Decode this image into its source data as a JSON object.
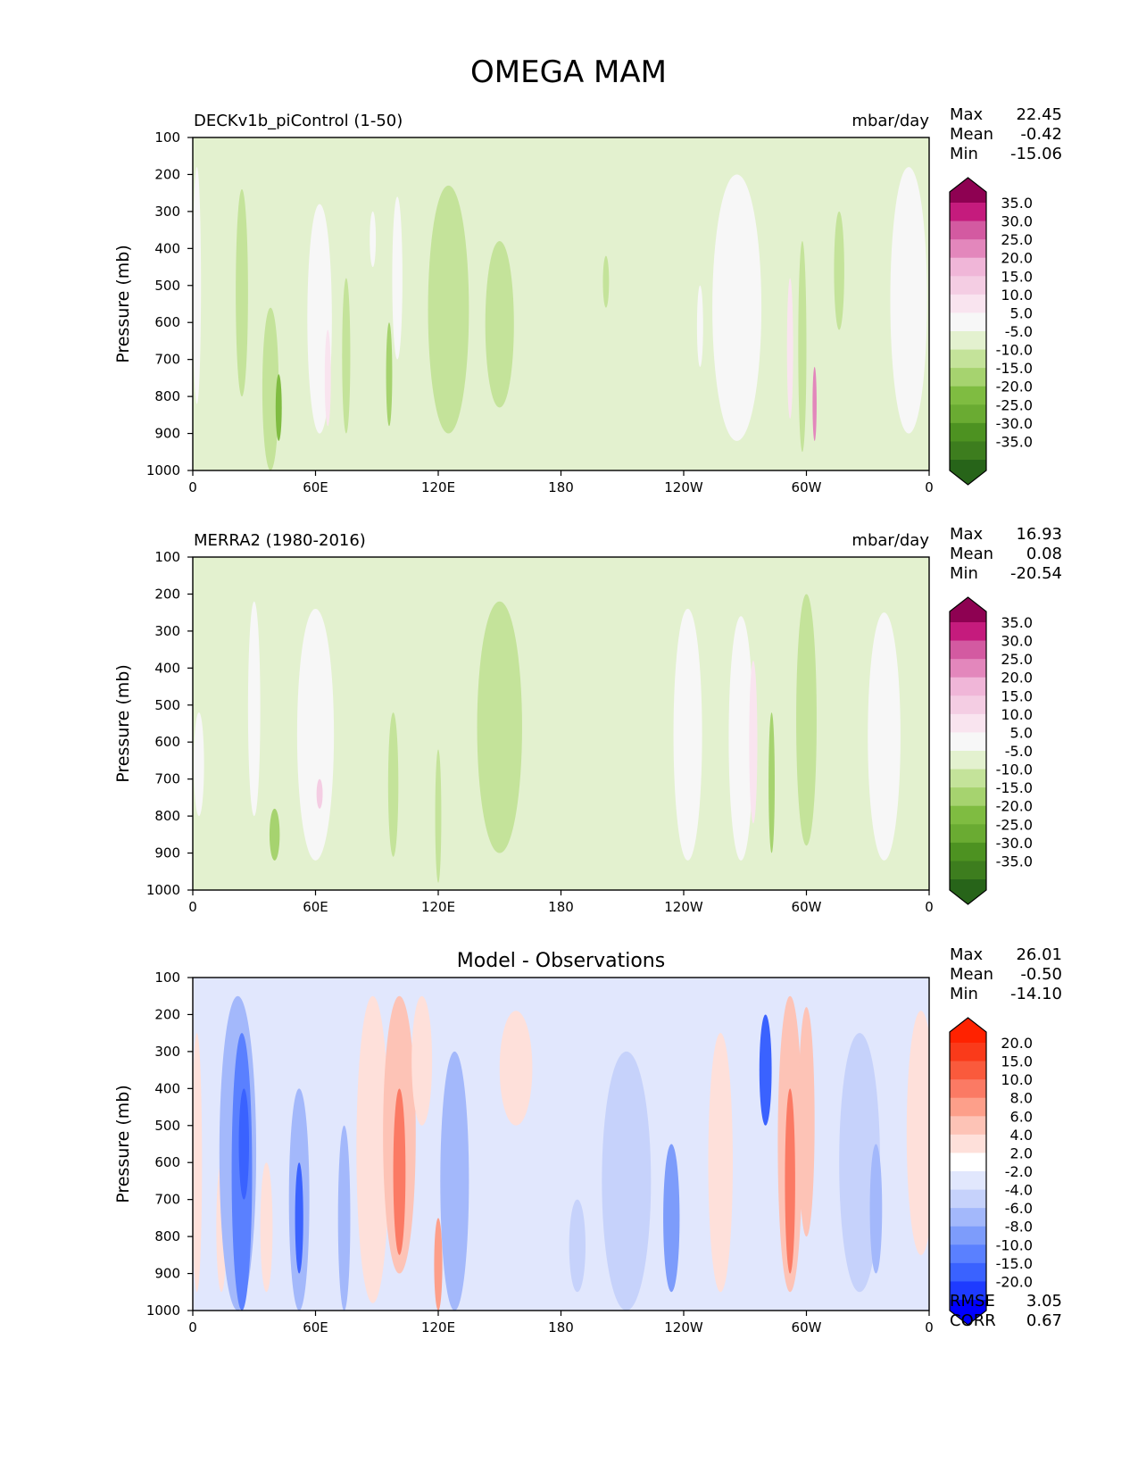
{
  "title": "OMEGA MAM",
  "x_ticks": [
    "0",
    "60E",
    "120E",
    "180",
    "120W",
    "60W",
    "0"
  ],
  "y_ticks": [
    "100",
    "200",
    "300",
    "400",
    "500",
    "600",
    "700",
    "800",
    "900",
    "1000"
  ],
  "y_label": "Pressure (mb)",
  "panels": [
    {
      "title_left": "DECKv1b_piControl (1-50)",
      "title_center": "",
      "units": "mbar/day",
      "stats": [
        {
          "label": "Max",
          "value": "22.45"
        },
        {
          "label": "Mean",
          "value": "-0.42"
        },
        {
          "label": "Min",
          "value": "-15.06"
        }
      ],
      "colorbar_labels": [
        "35.0",
        "30.0",
        "25.0",
        "20.0",
        "15.0",
        "10.0",
        "5.0",
        "-5.0",
        "-10.0",
        "-15.0",
        "-20.0",
        "-25.0",
        "-30.0",
        "-35.0"
      ],
      "extra_stats": []
    },
    {
      "title_left": "MERRA2 (1980-2016)",
      "title_center": "",
      "units": "mbar/day",
      "stats": [
        {
          "label": "Max",
          "value": "16.93"
        },
        {
          "label": "Mean",
          "value": "0.08"
        },
        {
          "label": "Min",
          "value": "-20.54"
        }
      ],
      "colorbar_labels": [
        "35.0",
        "30.0",
        "25.0",
        "20.0",
        "15.0",
        "10.0",
        "5.0",
        "-5.0",
        "-10.0",
        "-15.0",
        "-20.0",
        "-25.0",
        "-30.0",
        "-35.0"
      ],
      "extra_stats": []
    },
    {
      "title_left": "",
      "title_center": "Model - Observations",
      "units": "",
      "stats": [
        {
          "label": "Max",
          "value": "26.01"
        },
        {
          "label": "Mean",
          "value": "-0.50"
        },
        {
          "label": "Min",
          "value": "-14.10"
        }
      ],
      "colorbar_labels": [
        "20.0",
        "15.0",
        "10.0",
        "8.0",
        "6.0",
        "4.0",
        "2.0",
        "-2.0",
        "-4.0",
        "-6.0",
        "-8.0",
        "-10.0",
        "-15.0",
        "-20.0"
      ],
      "extra_stats": [
        {
          "label": "RMSE",
          "value": "3.05"
        },
        {
          "label": "CORR",
          "value": "0.67"
        }
      ]
    }
  ],
  "chart_data": [
    {
      "type": "heatmap",
      "title": "DECKv1b_piControl (1-50)",
      "units": "mbar/day",
      "xlabel": "",
      "ylabel": "Pressure (mb)",
      "x_range": [
        0,
        360
      ],
      "ylim": [
        1000,
        100
      ],
      "levels": [
        -35,
        -30,
        -25,
        -20,
        -15,
        -10,
        -5,
        5,
        10,
        15,
        20,
        25,
        30,
        35
      ],
      "colormap": "PiYG_r",
      "colors": [
        "#276419",
        "#3d7d1e",
        "#4d9221",
        "#6aab32",
        "#7fbc41",
        "#a6d36f",
        "#c4e39a",
        "#e3f1cf",
        "#f7f7f7",
        "#f9e4ef",
        "#f4cde3",
        "#f0b6d8",
        "#e387bc",
        "#d35aa1",
        "#c51b7d",
        "#8e0152"
      ],
      "features": [
        {
          "lon": 2,
          "p_top": 180,
          "p_bot": 820,
          "width": 4,
          "value": 7
        },
        {
          "lon": 24,
          "p_top": 240,
          "p_bot": 800,
          "width": 6,
          "value": -6
        },
        {
          "lon": 38,
          "p_top": 560,
          "p_bot": 1000,
          "width": 8,
          "value": -10
        },
        {
          "lon": 42,
          "p_top": 740,
          "p_bot": 920,
          "width": 3,
          "value": -18
        },
        {
          "lon": 62,
          "p_top": 280,
          "p_bot": 900,
          "width": 12,
          "value": 7
        },
        {
          "lon": 66,
          "p_top": 620,
          "p_bot": 880,
          "width": 3,
          "value": 12
        },
        {
          "lon": 75,
          "p_top": 480,
          "p_bot": 900,
          "width": 4,
          "value": -8
        },
        {
          "lon": 88,
          "p_top": 300,
          "p_bot": 450,
          "width": 3,
          "value": 6
        },
        {
          "lon": 96,
          "p_top": 600,
          "p_bot": 880,
          "width": 3,
          "value": -15
        },
        {
          "lon": 100,
          "p_top": 260,
          "p_bot": 700,
          "width": 5,
          "value": 6
        },
        {
          "lon": 125,
          "p_top": 230,
          "p_bot": 900,
          "width": 20,
          "value": -6
        },
        {
          "lon": 150,
          "p_top": 380,
          "p_bot": 830,
          "width": 14,
          "value": -6
        },
        {
          "lon": 202,
          "p_top": 420,
          "p_bot": 560,
          "width": 3,
          "value": -6
        },
        {
          "lon": 248,
          "p_top": 500,
          "p_bot": 720,
          "width": 3,
          "value": 6
        },
        {
          "lon": 266,
          "p_top": 200,
          "p_bot": 920,
          "width": 24,
          "value": 7
        },
        {
          "lon": 292,
          "p_top": 480,
          "p_bot": 860,
          "width": 3,
          "value": 14
        },
        {
          "lon": 298,
          "p_top": 380,
          "p_bot": 950,
          "width": 4,
          "value": -8
        },
        {
          "lon": 304,
          "p_top": 720,
          "p_bot": 920,
          "width": 2,
          "value": 26
        },
        {
          "lon": 316,
          "p_top": 300,
          "p_bot": 620,
          "width": 5,
          "value": -6
        },
        {
          "lon": 350,
          "p_top": 180,
          "p_bot": 900,
          "width": 18,
          "value": 6
        }
      ]
    },
    {
      "type": "heatmap",
      "title": "MERRA2 (1980-2016)",
      "units": "mbar/day",
      "xlabel": "",
      "ylabel": "Pressure (mb)",
      "x_range": [
        0,
        360
      ],
      "ylim": [
        1000,
        100
      ],
      "levels": [
        -35,
        -30,
        -25,
        -20,
        -15,
        -10,
        -5,
        5,
        10,
        15,
        20,
        25,
        30,
        35
      ],
      "colormap": "PiYG_r",
      "colors": [
        "#276419",
        "#3d7d1e",
        "#4d9221",
        "#6aab32",
        "#7fbc41",
        "#a6d36f",
        "#c4e39a",
        "#e3f1cf",
        "#f7f7f7",
        "#f9e4ef",
        "#f4cde3",
        "#f0b6d8",
        "#e387bc",
        "#d35aa1",
        "#c51b7d",
        "#8e0152"
      ],
      "features": [
        {
          "lon": 3,
          "p_top": 520,
          "p_bot": 800,
          "width": 5,
          "value": 6
        },
        {
          "lon": 30,
          "p_top": 220,
          "p_bot": 800,
          "width": 6,
          "value": 6
        },
        {
          "lon": 40,
          "p_top": 780,
          "p_bot": 920,
          "width": 5,
          "value": -14
        },
        {
          "lon": 60,
          "p_top": 240,
          "p_bot": 920,
          "width": 18,
          "value": 7
        },
        {
          "lon": 62,
          "p_top": 700,
          "p_bot": 780,
          "width": 3,
          "value": 16
        },
        {
          "lon": 98,
          "p_top": 520,
          "p_bot": 910,
          "width": 5,
          "value": -10
        },
        {
          "lon": 120,
          "p_top": 620,
          "p_bot": 980,
          "width": 3,
          "value": -6
        },
        {
          "lon": 150,
          "p_top": 220,
          "p_bot": 900,
          "width": 22,
          "value": -6
        },
        {
          "lon": 242,
          "p_top": 240,
          "p_bot": 920,
          "width": 14,
          "value": 6
        },
        {
          "lon": 268,
          "p_top": 260,
          "p_bot": 920,
          "width": 12,
          "value": 7
        },
        {
          "lon": 274,
          "p_top": 380,
          "p_bot": 820,
          "width": 4,
          "value": 12
        },
        {
          "lon": 283,
          "p_top": 520,
          "p_bot": 900,
          "width": 3,
          "value": -14
        },
        {
          "lon": 300,
          "p_top": 200,
          "p_bot": 880,
          "width": 10,
          "value": -6
        },
        {
          "lon": 338,
          "p_top": 250,
          "p_bot": 920,
          "width": 16,
          "value": 7
        }
      ]
    },
    {
      "type": "heatmap",
      "title": "Model - Observations",
      "units": "",
      "xlabel": "",
      "ylabel": "Pressure (mb)",
      "x_range": [
        0,
        360
      ],
      "ylim": [
        1000,
        100
      ],
      "levels": [
        -20,
        -15,
        -10,
        -8,
        -6,
        -4,
        -2,
        2,
        4,
        6,
        8,
        10,
        15,
        20
      ],
      "colormap": "bwr",
      "colors": [
        "#0000ff",
        "#1e3bff",
        "#3a62ff",
        "#5a80ff",
        "#7d9cfb",
        "#a3b8fb",
        "#c6d2fb",
        "#e1e7fd",
        "#ffffff",
        "#fee0da",
        "#fdc3b6",
        "#fd9f8a",
        "#fb7a64",
        "#fa5a3c",
        "#fa3a1a",
        "#ff2200"
      ],
      "features": [
        {
          "lon": 2,
          "p_top": 250,
          "p_bot": 950,
          "width": 5,
          "value": 5
        },
        {
          "lon": 14,
          "p_top": 600,
          "p_bot": 950,
          "width": 5,
          "value": 5
        },
        {
          "lon": 22,
          "p_top": 150,
          "p_bot": 1000,
          "width": 18,
          "value": -5
        },
        {
          "lon": 24,
          "p_top": 250,
          "p_bot": 1000,
          "width": 10,
          "value": -9
        },
        {
          "lon": 25,
          "p_top": 400,
          "p_bot": 700,
          "width": 5,
          "value": -14
        },
        {
          "lon": 36,
          "p_top": 600,
          "p_bot": 950,
          "width": 6,
          "value": 5
        },
        {
          "lon": 52,
          "p_top": 400,
          "p_bot": 1000,
          "width": 10,
          "value": -6
        },
        {
          "lon": 52,
          "p_top": 600,
          "p_bot": 900,
          "width": 4,
          "value": -12
        },
        {
          "lon": 74,
          "p_top": 500,
          "p_bot": 1000,
          "width": 6,
          "value": -5
        },
        {
          "lon": 88,
          "p_top": 150,
          "p_bot": 980,
          "width": 16,
          "value": 5
        },
        {
          "lon": 101,
          "p_top": 150,
          "p_bot": 900,
          "width": 16,
          "value": 7
        },
        {
          "lon": 101,
          "p_top": 400,
          "p_bot": 850,
          "width": 6,
          "value": 14
        },
        {
          "lon": 112,
          "p_top": 150,
          "p_bot": 500,
          "width": 10,
          "value": 5
        },
        {
          "lon": 120,
          "p_top": 750,
          "p_bot": 1000,
          "width": 4,
          "value": 8
        },
        {
          "lon": 128,
          "p_top": 300,
          "p_bot": 1000,
          "width": 14,
          "value": -5
        },
        {
          "lon": 158,
          "p_top": 190,
          "p_bot": 500,
          "width": 16,
          "value": 4
        },
        {
          "lon": 188,
          "p_top": 700,
          "p_bot": 950,
          "width": 8,
          "value": -3
        },
        {
          "lon": 212,
          "p_top": 300,
          "p_bot": 1000,
          "width": 24,
          "value": -3
        },
        {
          "lon": 234,
          "p_top": 550,
          "p_bot": 950,
          "width": 8,
          "value": -8
        },
        {
          "lon": 258,
          "p_top": 250,
          "p_bot": 950,
          "width": 12,
          "value": 5
        },
        {
          "lon": 280,
          "p_top": 200,
          "p_bot": 500,
          "width": 6,
          "value": -12
        },
        {
          "lon": 292,
          "p_top": 150,
          "p_bot": 950,
          "width": 12,
          "value": 7
        },
        {
          "lon": 292,
          "p_top": 400,
          "p_bot": 900,
          "width": 5,
          "value": 14
        },
        {
          "lon": 300,
          "p_top": 180,
          "p_bot": 800,
          "width": 8,
          "value": 6
        },
        {
          "lon": 326,
          "p_top": 250,
          "p_bot": 950,
          "width": 20,
          "value": -3
        },
        {
          "lon": 334,
          "p_top": 550,
          "p_bot": 900,
          "width": 6,
          "value": -6
        },
        {
          "lon": 356,
          "p_top": 190,
          "p_bot": 850,
          "width": 14,
          "value": 5
        }
      ]
    }
  ]
}
